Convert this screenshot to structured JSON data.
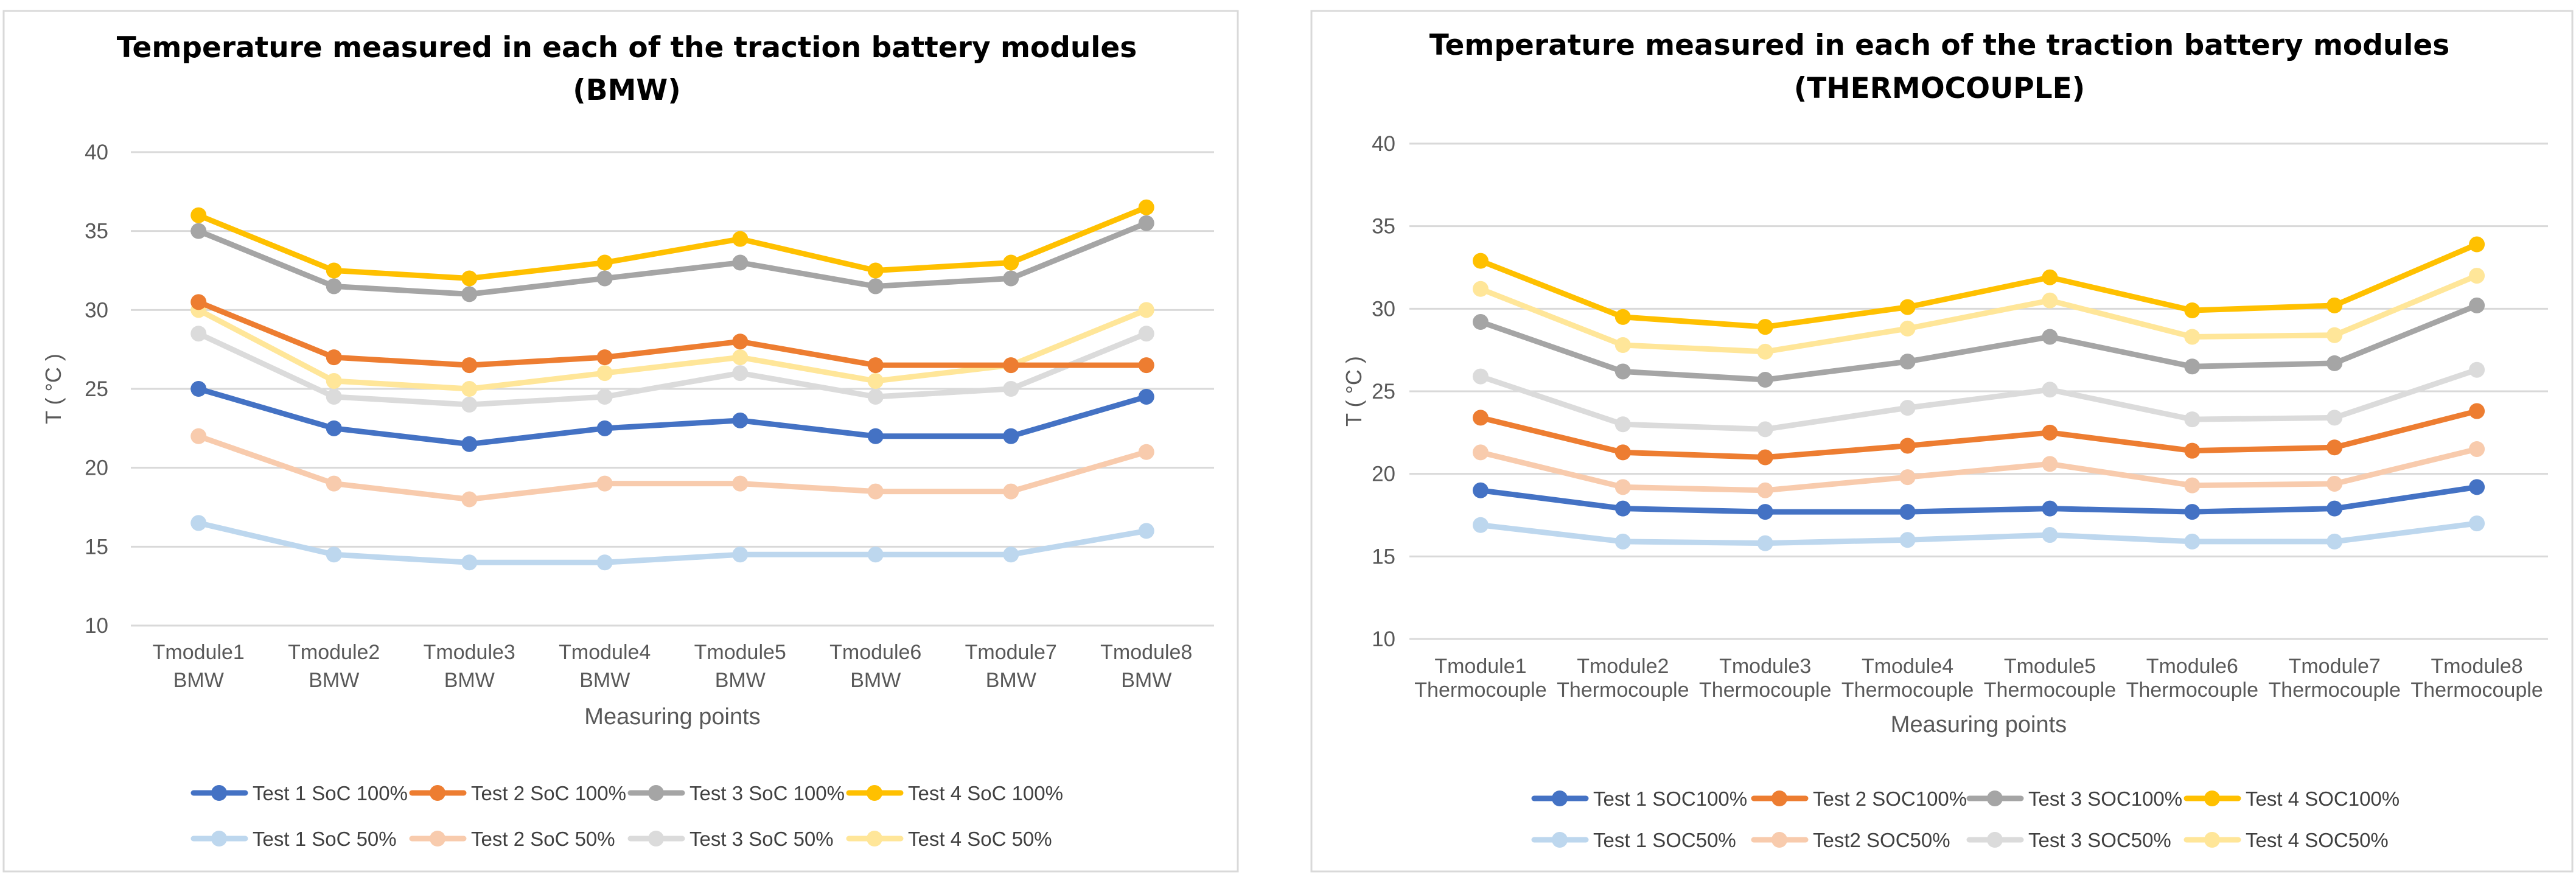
{
  "chart_data": [
    {
      "type": "line",
      "title_lines": [
        "Temperature measured in each of the traction battery modules",
        "(BMW)"
      ],
      "xlabel": "Measuring points",
      "ylabel": "T ( °C )",
      "ylim": [
        10,
        40
      ],
      "yticks": [
        "10",
        "15",
        "20",
        "25",
        "30",
        "35",
        "40"
      ],
      "categories": [
        [
          "Tmodule1",
          "BMW"
        ],
        [
          "Tmodule2",
          "BMW"
        ],
        [
          "Tmodule3",
          "BMW"
        ],
        [
          "Tmodule4",
          "BMW"
        ],
        [
          "Tmodule5",
          "BMW"
        ],
        [
          "Tmodule6",
          "BMW"
        ],
        [
          "Tmodule7",
          "BMW"
        ],
        [
          "Tmodule8",
          "BMW"
        ]
      ],
      "grid": true,
      "legend_position": "bottom",
      "series": [
        {
          "name": "Test 1 SoC 50%",
          "color": "#bdd7ee",
          "values": [
            16.5,
            14.5,
            14,
            14,
            14.5,
            14.5,
            14.5,
            16
          ]
        },
        {
          "name": "Test 2 SoC 50%",
          "color": "#f8cbad",
          "values": [
            22,
            19,
            18,
            19,
            19,
            18.5,
            18.5,
            21
          ]
        },
        {
          "name": "Test 3 SoC 50%",
          "color": "#dbdbdb",
          "values": [
            28.5,
            24.5,
            24,
            24.5,
            26,
            24.5,
            25,
            28.5
          ]
        },
        {
          "name": "Test 4 SoC 50%",
          "color": "#ffe699",
          "values": [
            30,
            25.5,
            25,
            26,
            27,
            25.5,
            26.5,
            30
          ]
        },
        {
          "name": "Test 1 SoC 100%",
          "color": "#4472c4",
          "values": [
            25,
            22.5,
            21.5,
            22.5,
            23,
            22,
            22,
            24.5
          ]
        },
        {
          "name": "Test 2 SoC 100%",
          "color": "#ed7d31",
          "values": [
            30.5,
            27,
            26.5,
            27,
            28,
            26.5,
            26.5,
            26.5
          ]
        },
        {
          "name": "Test 3 SoC 100%",
          "color": "#a5a5a5",
          "values": [
            35,
            31.5,
            31,
            32,
            33,
            31.5,
            32,
            35.5
          ]
        },
        {
          "name": "Test 4 SoC 100%",
          "color": "#ffc000",
          "values": [
            36,
            32.5,
            32,
            33,
            34.5,
            32.5,
            33,
            36.5
          ]
        }
      ],
      "legend_rows": [
        [
          "Test 1 SoC 100%",
          "Test 2 SoC 100%",
          "Test 3 SoC 100%",
          "Test 4 SoC 100%"
        ],
        [
          "Test 1 SoC 50%",
          "Test 2 SoC 50%",
          "Test 3 SoC 50%",
          "Test 4 SoC 50%"
        ]
      ]
    },
    {
      "type": "line",
      "title_lines": [
        "Temperature measured in each of the traction battery modules",
        "(THERMOCOUPLE)"
      ],
      "xlabel": "Measuring points",
      "ylabel": "T ( °C )",
      "ylim": [
        10,
        40
      ],
      "yticks": [
        "10",
        "15",
        "20",
        "25",
        "30",
        "35",
        "40"
      ],
      "categories": [
        [
          "Tmodule1",
          "Thermocouple"
        ],
        [
          "Tmodule2",
          "Thermocouple"
        ],
        [
          "Tmodule3",
          "Thermocouple"
        ],
        [
          "Tmodule4",
          "Thermocouple"
        ],
        [
          "Tmodule5",
          "Thermocouple"
        ],
        [
          "Tmodule6",
          "Thermocouple"
        ],
        [
          "Tmodule7",
          "Thermocouple"
        ],
        [
          "Tmodule8",
          "Thermocouple"
        ]
      ],
      "grid": true,
      "legend_position": "bottom",
      "series": [
        {
          "name": "Test 1 SOC50%",
          "color": "#bdd7ee",
          "values": [
            16.9,
            15.9,
            15.8,
            16,
            16.3,
            15.9,
            15.9,
            17
          ]
        },
        {
          "name": "Test2 SOC50%",
          "color": "#f8cbad",
          "values": [
            21.3,
            19.2,
            19,
            19.8,
            20.6,
            19.3,
            19.4,
            21.5
          ]
        },
        {
          "name": "Test 3 SOC50%",
          "color": "#dbdbdb",
          "values": [
            25.9,
            23,
            22.7,
            24,
            25.1,
            23.3,
            23.4,
            26.3
          ]
        },
        {
          "name": "Test 4 SOC50%",
          "color": "#ffe699",
          "values": [
            31.2,
            27.8,
            27.4,
            28.8,
            30.5,
            28.3,
            28.4,
            32
          ]
        },
        {
          "name": "Test 1 SOC100%",
          "color": "#4472c4",
          "values": [
            19,
            17.9,
            17.7,
            17.7,
            17.9,
            17.7,
            17.9,
            19.2
          ]
        },
        {
          "name": "Test 2 SOC100%",
          "color": "#ed7d31",
          "values": [
            23.4,
            21.3,
            21,
            21.7,
            22.5,
            21.4,
            21.6,
            23.8
          ]
        },
        {
          "name": "Test 3 SOC100%",
          "color": "#a5a5a5",
          "values": [
            29.2,
            26.2,
            25.7,
            26.8,
            28.3,
            26.5,
            26.7,
            30.2
          ]
        },
        {
          "name": "Test 4 SOC100%",
          "color": "#ffc000",
          "values": [
            32.9,
            29.5,
            28.9,
            30.1,
            31.9,
            29.9,
            30.2,
            33.9
          ]
        }
      ],
      "legend_rows": [
        [
          "Test 1 SOC100%",
          "Test 2 SOC100%",
          "Test 3 SOC100%",
          "Test 4 SOC100%"
        ],
        [
          "Test 1 SOC50%",
          "Test2 SOC50%",
          "Test 3 SOC50%",
          "Test 4 SOC50%"
        ]
      ]
    }
  ]
}
